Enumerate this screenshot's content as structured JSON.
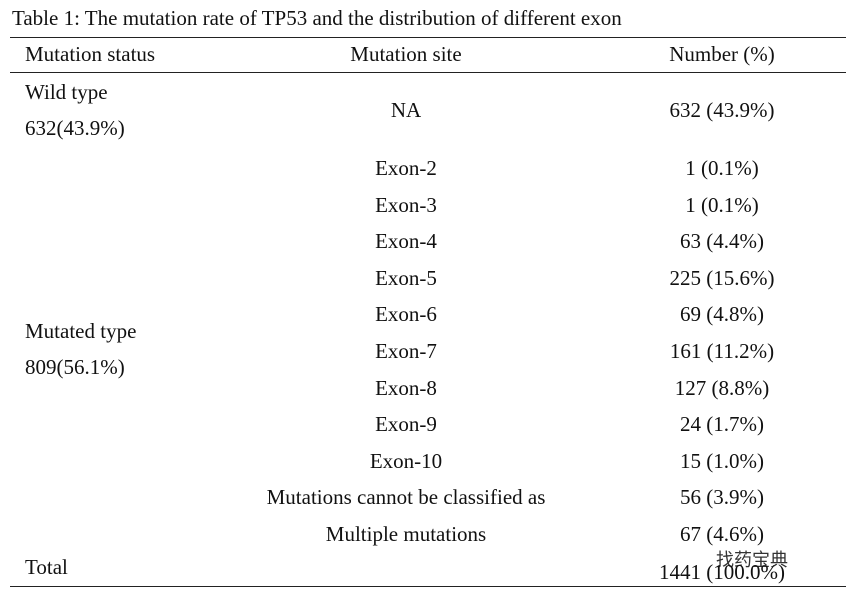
{
  "title": "Table 1: The mutation rate of TP53 and the distribution of different exon",
  "table": {
    "header": [
      "Mutation status",
      "Mutation site",
      "Number (%)"
    ],
    "groups": [
      {
        "status": [
          "Wild type",
          "632(43.9%)"
        ],
        "rows": [
          {
            "site": "NA",
            "number": "632 (43.9%)"
          }
        ]
      },
      {
        "status": [
          "Mutated type",
          "809(56.1%)"
        ],
        "rows": [
          {
            "site": "Exon-2",
            "number": "1 (0.1%)"
          },
          {
            "site": "Exon-3",
            "number": "1 (0.1%)"
          },
          {
            "site": "Exon-4",
            "number": "63 (4.4%)"
          },
          {
            "site": "Exon-5",
            "number": "225 (15.6%)"
          },
          {
            "site": "Exon-6",
            "number": "69 (4.8%)"
          },
          {
            "site": "Exon-7",
            "number": "161 (11.2%)"
          },
          {
            "site": "Exon-8",
            "number": "127 (8.8%)"
          },
          {
            "site": "Exon-9",
            "number": "24 (1.7%)"
          },
          {
            "site": "Exon-10",
            "number": "15 (1.0%)"
          },
          {
            "site": "Mutations cannot be classified as",
            "number": "56 (3.9%)"
          },
          {
            "site": "Multiple mutations",
            "number": "67 (4.6%)"
          }
        ]
      }
    ],
    "total": {
      "label": "Total",
      "number": "1441 (100.0%)"
    }
  },
  "watermark": "找药宝典"
}
